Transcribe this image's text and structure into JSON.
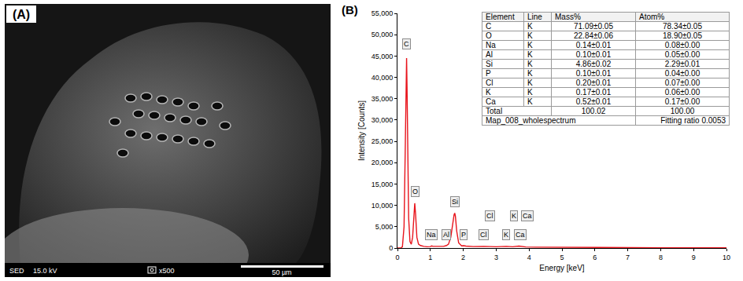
{
  "panel_a": {
    "label": "(A)",
    "info_bar": {
      "detector": "SED",
      "voltage": "15.0 kV",
      "magnification": "x500",
      "scale_bar": "50 µm"
    }
  },
  "panel_b": {
    "label": "(B)"
  },
  "chart_data": {
    "type": "line",
    "x_label": "Energy [keV]",
    "y_label": "Intensity [Counts]",
    "x": [
      0,
      0.1,
      0.15,
      0.2,
      0.24,
      0.26,
      0.277,
      0.29,
      0.31,
      0.34,
      0.38,
      0.42,
      0.46,
      0.5,
      0.525,
      0.55,
      0.59,
      0.64,
      0.7,
      0.8,
      0.9,
      1.0,
      1.04,
      1.08,
      1.2,
      1.4,
      1.49,
      1.55,
      1.62,
      1.68,
      1.72,
      1.74,
      1.76,
      1.8,
      1.86,
      1.95,
      2.01,
      2.08,
      2.3,
      2.62,
      2.8,
      3.0,
      3.31,
      3.5,
      3.69,
      3.9,
      4.2,
      5,
      6,
      7,
      8,
      9,
      10
    ],
    "values": [
      0,
      0,
      300,
      5000,
      25000,
      38000,
      44500,
      38000,
      22000,
      7000,
      1500,
      900,
      2500,
      8500,
      10500,
      8000,
      2500,
      900,
      600,
      400,
      300,
      350,
      500,
      400,
      350,
      400,
      600,
      900,
      2500,
      6000,
      7800,
      8200,
      7500,
      4000,
      1200,
      500,
      550,
      450,
      350,
      400,
      350,
      300,
      400,
      300,
      450,
      250,
      200,
      150,
      100,
      80,
      60,
      50,
      40
    ],
    "color": "#e8141c",
    "xlim": [
      0,
      10
    ],
    "xticks": [
      0,
      1,
      2,
      3,
      4,
      5,
      6,
      7,
      8,
      9,
      10
    ],
    "ylim": [
      0,
      55000
    ],
    "yticks": [
      0,
      {
        "value": 5000,
        "label": "5,000"
      },
      {
        "value": 10000,
        "label": "10,000"
      },
      {
        "value": 15000,
        "label": "15,000"
      },
      {
        "value": 20000,
        "label": "20,000"
      },
      {
        "value": 25000,
        "label": "25,000"
      },
      {
        "value": 30000,
        "label": "30,000"
      },
      {
        "value": 35000,
        "label": "35,000"
      },
      {
        "value": 40000,
        "label": "40,000"
      },
      {
        "value": 45000,
        "label": "45,000"
      },
      {
        "value": 50000,
        "label": "50,000"
      },
      {
        "value": 55000,
        "label": "55,000"
      }
    ],
    "grid": false,
    "annotations": [
      {
        "text": "C",
        "x": 0.28,
        "y": 46500
      },
      {
        "text": "O",
        "x": 0.53,
        "y": 12000
      },
      {
        "text": "Na",
        "x": 1.04,
        "y": 1800
      },
      {
        "text": "Al",
        "x": 1.49,
        "y": 1800
      },
      {
        "text": "Si",
        "x": 1.74,
        "y": 9500
      },
      {
        "text": "P",
        "x": 2.01,
        "y": 1800
      },
      {
        "text": "Cl",
        "x": 2.62,
        "y": 1800
      },
      {
        "text": "Cl",
        "x": 2.82,
        "y": 6200
      },
      {
        "text": "K",
        "x": 3.31,
        "y": 1800
      },
      {
        "text": "K",
        "x": 3.55,
        "y": 6200
      },
      {
        "text": "Ca",
        "x": 3.72,
        "y": 1800
      },
      {
        "text": "Ca",
        "x": 3.95,
        "y": 6200
      }
    ]
  },
  "table": {
    "columns": [
      "Element",
      "Line",
      "Mass%",
      "Atom%"
    ],
    "rows": [
      [
        "C",
        "K",
        "71.09±0.05",
        "78.34±0.05"
      ],
      [
        "O",
        "K",
        "22.84±0.06",
        "18.90±0.05"
      ],
      [
        "Na",
        "K",
        "0.14±0.01",
        "0.08±0.00"
      ],
      [
        "Al",
        "K",
        "0.10±0.01",
        "0.05±0.00"
      ],
      [
        "Si",
        "K",
        "4.86±0.02",
        "2.29±0.01"
      ],
      [
        "P",
        "K",
        "0.10±0.01",
        "0.04±0.00"
      ],
      [
        "Cl",
        "K",
        "0.20±0.01",
        "0.07±0.00"
      ],
      [
        "K",
        "K",
        "0.17±0.01",
        "0.06±0.00"
      ],
      [
        "Ca",
        "K",
        "0.52±0.01",
        "0.17±0.00"
      ]
    ],
    "total": {
      "label": "Total",
      "mass": "100.02",
      "atom": "100.00"
    },
    "footer": {
      "name": "Map_008_wholespectrum",
      "fit": "Fitting ratio 0.0053"
    }
  }
}
